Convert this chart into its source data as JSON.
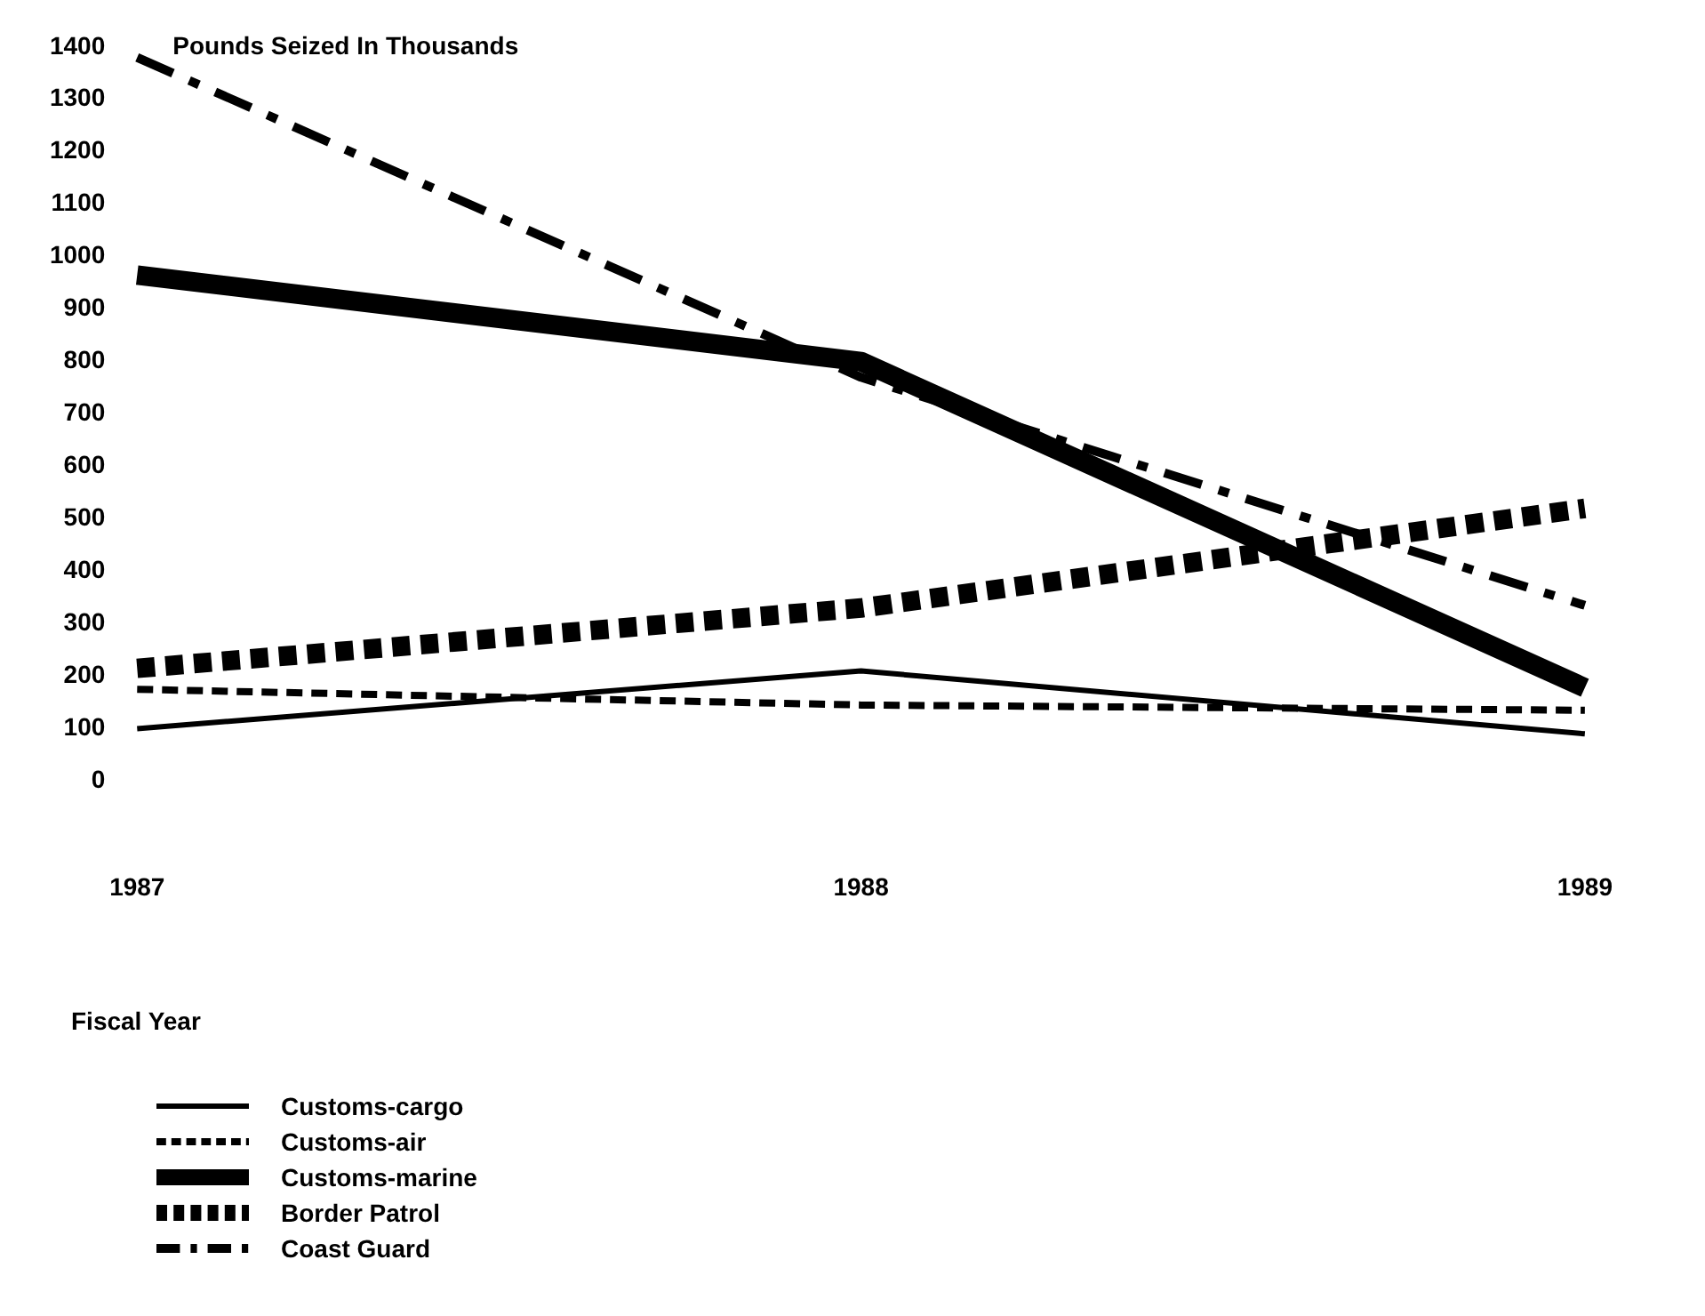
{
  "chart_data": {
    "type": "line",
    "ylabel": "Pounds Seized In Thousands",
    "xlabel": "Fiscal Year",
    "categories": [
      "1987",
      "1988",
      "1989"
    ],
    "series": [
      {
        "name": "Customs-cargo",
        "color": "#000000",
        "line_style": "solid",
        "values": [
          100,
          210,
          90
        ]
      },
      {
        "name": "Customs-air",
        "color": "#000000",
        "line_style": "dashed",
        "values": [
          175,
          145,
          135
        ]
      },
      {
        "name": "Customs-marine",
        "color": "#000000",
        "line_style": "solid",
        "values": [
          965,
          800,
          178
        ]
      },
      {
        "name": "Border Patrol",
        "color": "#000000",
        "line_style": "dotted",
        "values": [
          215,
          330,
          520
        ]
      },
      {
        "name": "Coast Guard",
        "color": "#000000",
        "line_style": "dashdot",
        "values": [
          1380,
          770,
          335
        ]
      }
    ],
    "ylim": [
      0,
      1400
    ],
    "yticks": [
      0,
      100,
      200,
      300,
      400,
      500,
      600,
      700,
      800,
      900,
      1000,
      1100,
      1200,
      1300,
      1400
    ],
    "grid": false,
    "marker": "none",
    "legend": "bottom"
  }
}
